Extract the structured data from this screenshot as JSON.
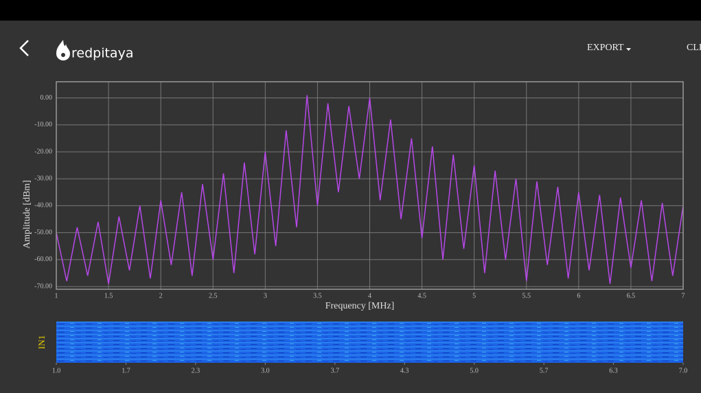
{
  "header": {
    "logo": "redpitaya",
    "menu": [
      "EXPORT",
      "CLEAR"
    ]
  },
  "chart_data": {
    "type": "line",
    "xlabel": "Frequency   [MHz]",
    "ylabel": "Amplitude [dBm]",
    "x": [
      1,
      1.1,
      1.2,
      1.3,
      1.4,
      1.5,
      1.6,
      1.7,
      1.8,
      1.9,
      2,
      2.1,
      2.2,
      2.3,
      2.4,
      2.5,
      2.6,
      2.7,
      2.8,
      2.9,
      3,
      3.1,
      3.2,
      3.3,
      3.4,
      3.5,
      3.6,
      3.7,
      3.8,
      3.9,
      4,
      4.1,
      4.2,
      4.3,
      4.4,
      4.5,
      4.6,
      4.7,
      4.8,
      4.9,
      5,
      5.1,
      5.2,
      5.3,
      5.4,
      5.5,
      5.6,
      5.7,
      5.8,
      5.9,
      6,
      6.1,
      6.2,
      6.3,
      6.4,
      6.5,
      6.6,
      6.7,
      6.8,
      6.9,
      7
    ],
    "values": [
      -50,
      -68,
      -48,
      -66,
      -46,
      -69,
      -44,
      -64,
      -40,
      -67,
      -38,
      -62,
      -35,
      -66,
      -32,
      -60,
      -28,
      -65,
      -24,
      -58,
      -20,
      -55,
      -12,
      -48,
      1,
      -40,
      -2,
      -35,
      -3,
      -30,
      0,
      -38,
      -8,
      -45,
      -15,
      -52,
      -18,
      -60,
      -21,
      -56,
      -25,
      -65,
      -27,
      -60,
      -30,
      -68,
      -31,
      -62,
      -33,
      -67,
      -35,
      -64,
      -36,
      -69,
      -37,
      -63,
      -38,
      -68,
      -39,
      -66,
      -40
    ],
    "color": "#b548e8",
    "xlim": [
      1,
      7
    ],
    "xticks": [
      1,
      1.5,
      2,
      2.5,
      3,
      3.5,
      4,
      4.5,
      5,
      5.5,
      6,
      6.5,
      7
    ],
    "ylim": [
      -71,
      6
    ],
    "yticks": [
      {
        "value": 0,
        "label": "0.00"
      },
      {
        "value": -10,
        "label": "-10.00"
      },
      {
        "value": -20,
        "label": "-20.00"
      },
      {
        "value": -30,
        "label": "-30.00"
      },
      {
        "value": -40,
        "label": "-40.00"
      },
      {
        "value": -50,
        "label": "-50.00"
      },
      {
        "value": -60,
        "label": "-60.00"
      },
      {
        "value": -70,
        "label": "-70.00"
      }
    ],
    "grid": true
  },
  "waterfall": {
    "channel": "IN1",
    "xlim": [
      1,
      7
    ],
    "xticks": [
      {
        "value": 1,
        "label": "1.0"
      },
      {
        "value": 1.667,
        "label": "1.7"
      },
      {
        "value": 2.333,
        "label": "2.3"
      },
      {
        "value": 3,
        "label": "3.0"
      },
      {
        "value": 3.667,
        "label": "3.7"
      },
      {
        "value": 4.333,
        "label": "4.3"
      },
      {
        "value": 5,
        "label": "5.0"
      },
      {
        "value": 5.667,
        "label": "5.7"
      },
      {
        "value": 6.333,
        "label": "6.3"
      },
      {
        "value": 7,
        "label": "7.0"
      }
    ]
  }
}
